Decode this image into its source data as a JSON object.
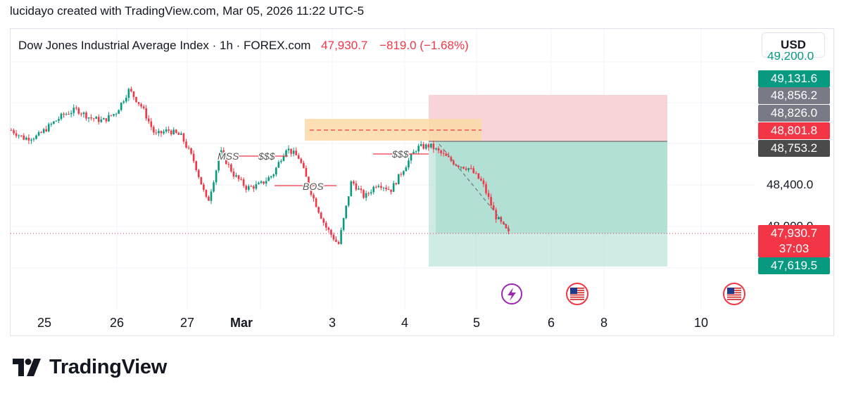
{
  "attribution": "lucidayo created with TradingView.com, Mar 05, 2026 11:22 UTC-5",
  "legend": {
    "symbol": "Dow Jones Industrial Average Index · 1h · FOREX.com",
    "last_price": "47,930.7",
    "change": "−819.0 (−1.68%)"
  },
  "currency_button": "USD",
  "price_scale": {
    "top_partial_label": "49,200.0",
    "labels": [
      "48,400.0",
      "48,000.0"
    ],
    "tags": [
      {
        "text": "49,131.6",
        "color": "#089981"
      },
      {
        "text": "48,856.2",
        "color": "#787b86"
      },
      {
        "text": "48,826.0",
        "color": "#787b86"
      },
      {
        "text": "48,801.8",
        "color": "#f23645"
      },
      {
        "text": "48,753.2",
        "color": "#4a4a4a"
      }
    ],
    "current": {
      "price": "47,930.7",
      "countdown": "37:03",
      "color": "#f23645"
    },
    "bottom_tag": {
      "text": "47,619.5",
      "color": "#089981"
    }
  },
  "annotations": {
    "mss": "MSS",
    "liquidity_left": "$$$",
    "bos": "BOS",
    "liquidity_right": "$$$"
  },
  "colors": {
    "up": "#089981",
    "down": "#f23645",
    "order_block": "#fcd9a7",
    "stop_zone": "#f7c6c9",
    "target_zone": "#a6dccf"
  },
  "events": [
    {
      "type": "lightning-icon",
      "color": "#9c27b0"
    },
    {
      "type": "us-flag-icon"
    },
    {
      "type": "us-flag-icon"
    }
  ],
  "brand": "TradingView",
  "chart_data": {
    "type": "candlestick",
    "title": "Dow Jones Industrial Average Index · 1h · FOREX.com",
    "x_tick_labels": [
      "25",
      "26",
      "27",
      "Mar",
      "3",
      "4",
      "5",
      "6",
      "8",
      "10"
    ],
    "y_tick_labels": [
      "48,400.0",
      "48,000.0"
    ],
    "series": [
      {
        "name": "Dow Jones Industrial Average Index",
        "points_approx_close": [
          48930,
          48850,
          48870,
          48980,
          49080,
          49130,
          49050,
          49020,
          49100,
          49320,
          49150,
          48880,
          48930,
          48870,
          48620,
          48220,
          48720,
          48500,
          48370,
          48400,
          48500,
          48760,
          48660,
          48300,
          48000,
          47820,
          48440,
          48280,
          48420,
          48350,
          48560,
          48760,
          48780,
          48690,
          48600,
          48560,
          48420,
          48100,
          47930
        ]
      }
    ],
    "reference_levels": [
      49131.6,
      48856.2,
      48826.0,
      48801.8,
      48753.2,
      47930.7,
      47619.5
    ],
    "ylim": [
      47450,
      49350
    ]
  }
}
